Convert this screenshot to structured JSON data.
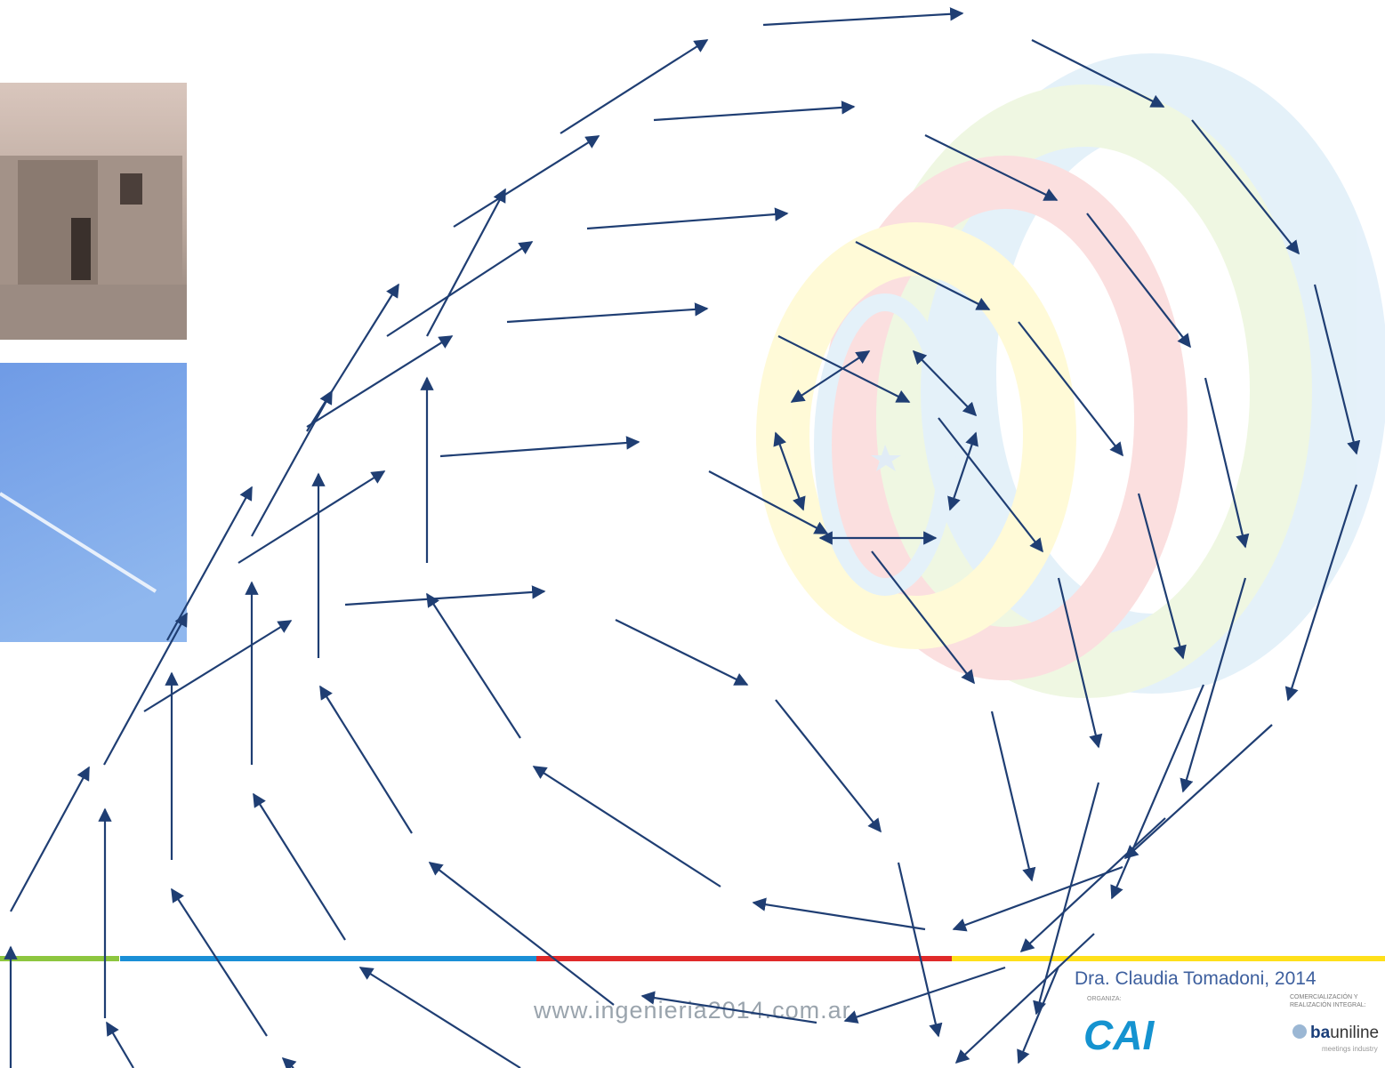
{
  "slide": {
    "author": "Dra. Claudia Tomadoni, 2014",
    "website": "www.ingenieria2014.com.ar",
    "logos": {
      "organizer_label": "ORGANIZA:",
      "organizer": "CAI",
      "partner_label_1": "COMERCIALIZACIÓN Y",
      "partner_label_2": "REALIZACIÓN INTEGRAL:",
      "partner_prefix": "ba",
      "partner_suffix": "uniline",
      "partner_tagline": "meetings industry"
    }
  }
}
